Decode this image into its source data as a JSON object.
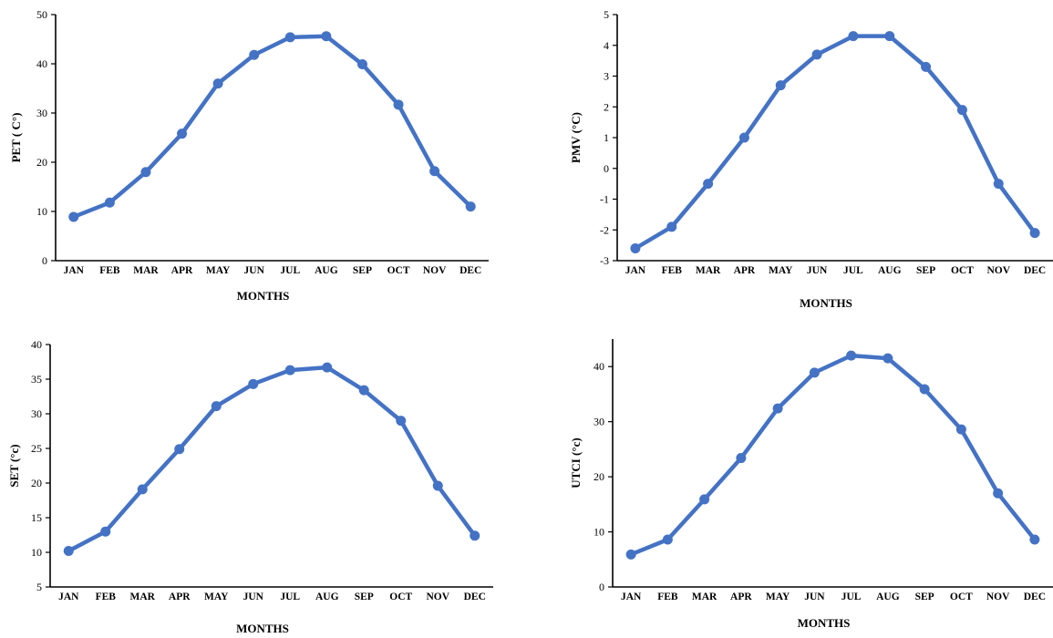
{
  "chart_data": [
    {
      "type": "line",
      "title": "",
      "xlabel": "MONTHS",
      "ylabel": "PET ( C°)",
      "ylim": [
        0,
        50
      ],
      "yticks": [
        0,
        10,
        20,
        30,
        40,
        50
      ],
      "categories": [
        "JAN",
        "FEB",
        "MAR",
        "APR",
        "MAY",
        "JUN",
        "JUL",
        "AUG",
        "SEP",
        "OCT",
        "NOV",
        "DEC"
      ],
      "grid": false,
      "color": "#4472c4",
      "series": [
        {
          "values": [
            8.9,
            11.8,
            18.0,
            25.8,
            36.0,
            41.8,
            45.4,
            45.6,
            39.9,
            31.7,
            18.2,
            11.0
          ]
        }
      ]
    },
    {
      "type": "line",
      "title": "",
      "xlabel": "MONTHS",
      "ylabel": "PMV (°C)",
      "ylim": [
        -3,
        5
      ],
      "yticks": [
        -3,
        -2,
        -1,
        0,
        1,
        2,
        3,
        4,
        5
      ],
      "categories": [
        "JAN",
        "FEB",
        "MAR",
        "APR",
        "MAY",
        "JUN",
        "JUL",
        "AUG",
        "SEP",
        "OCT",
        "NOV",
        "DEC"
      ],
      "grid": false,
      "color": "#4472c4",
      "series": [
        {
          "values": [
            -2.6,
            -1.9,
            -0.5,
            1.0,
            2.7,
            3.7,
            4.3,
            4.3,
            3.3,
            1.9,
            -0.5,
            -2.1
          ]
        }
      ]
    },
    {
      "type": "line",
      "title": "",
      "xlabel": "MONTHS",
      "ylabel": "SET (°c)",
      "ylim": [
        5,
        40
      ],
      "yticks": [
        5,
        10,
        15,
        20,
        25,
        30,
        35,
        40
      ],
      "categories": [
        "JAN",
        "FEB",
        "MAR",
        "APR",
        "MAY",
        "JUN",
        "JUL",
        "AUG",
        "SEP",
        "OCT",
        "NOV",
        "DEC"
      ],
      "grid": false,
      "color": "#4472c4",
      "series": [
        {
          "values": [
            10.2,
            13.0,
            19.1,
            24.9,
            31.1,
            34.3,
            36.3,
            36.7,
            33.4,
            29.0,
            19.6,
            12.4
          ]
        }
      ]
    },
    {
      "type": "line",
      "title": "",
      "xlabel": "MONTHS",
      "ylabel": "UTCI (°c)",
      "ylim": [
        0,
        45
      ],
      "yticks": [
        0,
        10,
        20,
        30,
        40
      ],
      "categories": [
        "JAN",
        "FEB",
        "MAR",
        "APR",
        "MAY",
        "JUN",
        "JUL",
        "AUG",
        "SEP",
        "OCT",
        "NOV",
        "DEC"
      ],
      "grid": false,
      "color": "#4472c4",
      "series": [
        {
          "values": [
            5.9,
            8.6,
            15.9,
            23.4,
            32.4,
            38.9,
            42.0,
            41.5,
            35.9,
            28.6,
            17.0,
            8.6
          ]
        }
      ]
    }
  ]
}
